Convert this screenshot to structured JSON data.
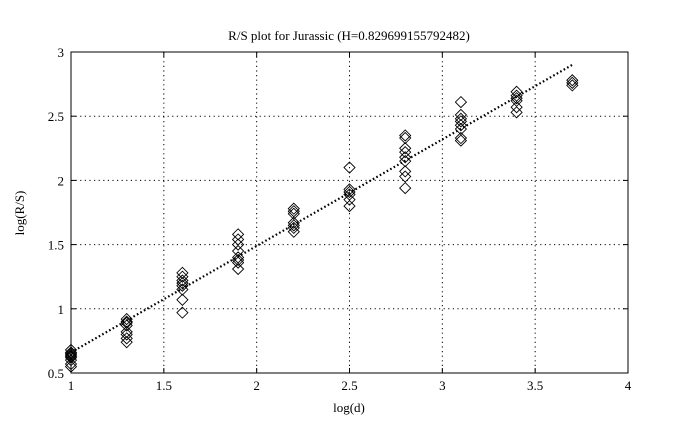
{
  "chart_data": {
    "type": "scatter",
    "title": "R/S plot for Jurassic (H=0.829699155792482)",
    "xlabel": "log(d)",
    "ylabel": "log(R/S)",
    "xlim": [
      1,
      4
    ],
    "ylim": [
      0.5,
      3
    ],
    "xticks": [
      1,
      1.5,
      2,
      2.5,
      3,
      3.5,
      4
    ],
    "yticks": [
      0.5,
      1,
      1.5,
      2,
      2.5,
      3
    ],
    "xtick_labels": [
      "1",
      "1.5",
      "2",
      "2.5",
      "3",
      "3.5",
      "4"
    ],
    "ytick_labels": [
      "0.5",
      "1",
      "1.5",
      "2",
      "2.5",
      "3"
    ],
    "grid": true,
    "marker": "diamond",
    "points": [
      {
        "x": 1.0,
        "y": 0.55
      },
      {
        "x": 1.0,
        "y": 0.57
      },
      {
        "x": 1.0,
        "y": 0.6
      },
      {
        "x": 1.0,
        "y": 0.62
      },
      {
        "x": 1.0,
        "y": 0.63
      },
      {
        "x": 1.0,
        "y": 0.64
      },
      {
        "x": 1.0,
        "y": 0.65
      },
      {
        "x": 1.0,
        "y": 0.66
      },
      {
        "x": 1.0,
        "y": 0.68
      },
      {
        "x": 1.3,
        "y": 0.74
      },
      {
        "x": 1.3,
        "y": 0.77
      },
      {
        "x": 1.3,
        "y": 0.8
      },
      {
        "x": 1.3,
        "y": 0.82
      },
      {
        "x": 1.3,
        "y": 0.87
      },
      {
        "x": 1.3,
        "y": 0.89
      },
      {
        "x": 1.3,
        "y": 0.9
      },
      {
        "x": 1.3,
        "y": 0.92
      },
      {
        "x": 1.6,
        "y": 0.97
      },
      {
        "x": 1.6,
        "y": 1.07
      },
      {
        "x": 1.6,
        "y": 1.15
      },
      {
        "x": 1.6,
        "y": 1.18
      },
      {
        "x": 1.6,
        "y": 1.2
      },
      {
        "x": 1.6,
        "y": 1.22
      },
      {
        "x": 1.6,
        "y": 1.25
      },
      {
        "x": 1.6,
        "y": 1.28
      },
      {
        "x": 1.9,
        "y": 1.31
      },
      {
        "x": 1.9,
        "y": 1.36
      },
      {
        "x": 1.9,
        "y": 1.38
      },
      {
        "x": 1.9,
        "y": 1.4
      },
      {
        "x": 1.9,
        "y": 1.45
      },
      {
        "x": 1.9,
        "y": 1.5
      },
      {
        "x": 1.9,
        "y": 1.54
      },
      {
        "x": 1.9,
        "y": 1.58
      },
      {
        "x": 2.2,
        "y": 1.6
      },
      {
        "x": 2.2,
        "y": 1.63
      },
      {
        "x": 2.2,
        "y": 1.65
      },
      {
        "x": 2.2,
        "y": 1.67
      },
      {
        "x": 2.2,
        "y": 1.74
      },
      {
        "x": 2.2,
        "y": 1.76
      },
      {
        "x": 2.2,
        "y": 1.78
      },
      {
        "x": 2.5,
        "y": 1.8
      },
      {
        "x": 2.5,
        "y": 1.85
      },
      {
        "x": 2.5,
        "y": 1.89
      },
      {
        "x": 2.5,
        "y": 1.91
      },
      {
        "x": 2.5,
        "y": 1.93
      },
      {
        "x": 2.5,
        "y": 2.1
      },
      {
        "x": 2.8,
        "y": 1.94
      },
      {
        "x": 2.8,
        "y": 2.03
      },
      {
        "x": 2.8,
        "y": 2.07
      },
      {
        "x": 2.8,
        "y": 2.15
      },
      {
        "x": 2.8,
        "y": 2.18
      },
      {
        "x": 2.8,
        "y": 2.22
      },
      {
        "x": 2.8,
        "y": 2.25
      },
      {
        "x": 2.8,
        "y": 2.33
      },
      {
        "x": 2.8,
        "y": 2.35
      },
      {
        "x": 3.1,
        "y": 2.31
      },
      {
        "x": 3.1,
        "y": 2.33
      },
      {
        "x": 3.1,
        "y": 2.4
      },
      {
        "x": 3.1,
        "y": 2.43
      },
      {
        "x": 3.1,
        "y": 2.46
      },
      {
        "x": 3.1,
        "y": 2.48
      },
      {
        "x": 3.1,
        "y": 2.51
      },
      {
        "x": 3.1,
        "y": 2.61
      },
      {
        "x": 3.4,
        "y": 2.53
      },
      {
        "x": 3.4,
        "y": 2.57
      },
      {
        "x": 3.4,
        "y": 2.62
      },
      {
        "x": 3.4,
        "y": 2.64
      },
      {
        "x": 3.4,
        "y": 2.66
      },
      {
        "x": 3.4,
        "y": 2.69
      },
      {
        "x": 3.7,
        "y": 2.74
      },
      {
        "x": 3.7,
        "y": 2.76
      },
      {
        "x": 3.7,
        "y": 2.78
      }
    ],
    "fit_line": {
      "x": [
        1.0,
        3.7
      ],
      "y": [
        0.66,
        2.9
      ]
    }
  }
}
